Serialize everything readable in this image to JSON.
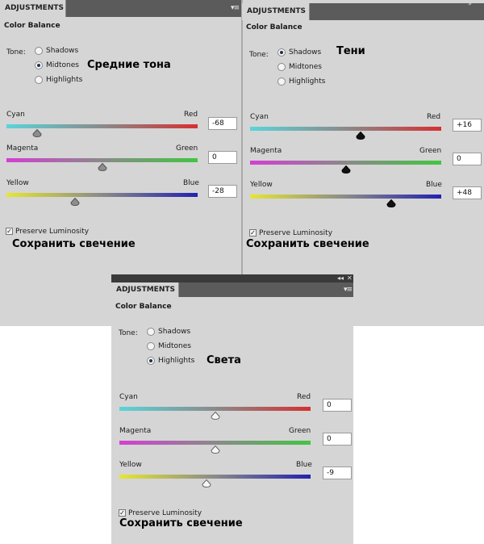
{
  "tab_title": "ADJUSTMENTS",
  "panel_title": "Color Balance",
  "tone_label": "Tone:",
  "radios": [
    "Shadows",
    "Midtones",
    "Highlights"
  ],
  "sliders": {
    "cyan": "Cyan",
    "red": "Red",
    "magenta": "Magenta",
    "green": "Green",
    "yellow": "Yellow",
    "blue": "Blue"
  },
  "preserve_label": "Preserve Luminosity",
  "icons": {
    "panel_menu": "panel-menu-icon",
    "collapse": "double-arrow-icon",
    "close": "close-icon"
  },
  "panels": [
    {
      "selected_tone": "Midtones",
      "tone_caption": "Средние тона",
      "values": [
        "-68",
        "0",
        "-28"
      ],
      "levels": [
        -68,
        0,
        -28
      ],
      "preserve_checked": true,
      "preserve_caption": "Сохранить свечение",
      "thumb_style": "gray"
    },
    {
      "selected_tone": "Shadows",
      "tone_caption": "Тени",
      "values": [
        "+16",
        "0",
        "+48"
      ],
      "levels": [
        16,
        0,
        48
      ],
      "preserve_checked": true,
      "preserve_caption": "Сохранить свечение",
      "thumb_style": "black"
    },
    {
      "selected_tone": "Highlights",
      "tone_caption": "Света",
      "values": [
        "0",
        "0",
        "-9"
      ],
      "levels": [
        0,
        0,
        -9
      ],
      "preserve_checked": true,
      "preserve_caption": "Сохранить свечение",
      "thumb_style": "white"
    }
  ]
}
